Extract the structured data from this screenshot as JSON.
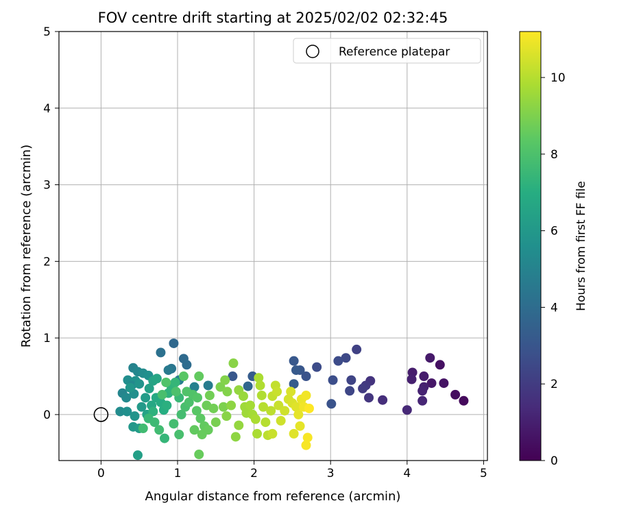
{
  "chart_data": {
    "type": "scatter",
    "title": "FOV centre drift starting at 2025/02/02 02:32:45",
    "xlabel": "Angular distance from reference (arcmin)",
    "ylabel": "Rotation from reference (arcmin)",
    "xlim": [
      -0.55,
      5.05
    ],
    "ylim": [
      -0.6,
      5.0
    ],
    "xticks": [
      "0",
      "1",
      "2",
      "3",
      "4",
      "5"
    ],
    "yticks": [
      "0",
      "1",
      "2",
      "3",
      "4",
      "5"
    ],
    "grid": true,
    "legend": {
      "placement": "top-right",
      "entries": [
        "Reference platepar"
      ]
    },
    "reference_point": {
      "x": 0,
      "y": 0
    },
    "colorbar": {
      "label": "Hours from first FF file",
      "range": [
        0,
        11.2
      ],
      "colormap": "viridis",
      "ticks": [
        "0",
        "2",
        "4",
        "6",
        "8",
        "10"
      ]
    },
    "series": [
      {
        "color_by": "hours",
        "points": [
          [
            4.74,
            0.18,
            0.3
          ],
          [
            4.63,
            0.26,
            0.4
          ],
          [
            4.48,
            0.41,
            0.6
          ],
          [
            4.43,
            0.65,
            0.5
          ],
          [
            4.3,
            0.74,
            0.8
          ],
          [
            4.32,
            0.41,
            0.7
          ],
          [
            4.22,
            0.5,
            0.9
          ],
          [
            4.22,
            0.36,
            1.0
          ],
          [
            4.2,
            0.31,
            1.1
          ],
          [
            4.2,
            0.18,
            1.2
          ],
          [
            4.07,
            0.55,
            0.9
          ],
          [
            4.06,
            0.46,
            1.0
          ],
          [
            4.0,
            0.06,
            1.3
          ],
          [
            3.68,
            0.19,
            1.5
          ],
          [
            3.52,
            0.44,
            1.7
          ],
          [
            3.5,
            0.22,
            1.8
          ],
          [
            3.46,
            0.38,
            1.9
          ],
          [
            3.42,
            0.34,
            2.0
          ],
          [
            3.34,
            0.85,
            2.2
          ],
          [
            3.27,
            0.45,
            2.3
          ],
          [
            3.25,
            0.31,
            2.4
          ],
          [
            3.2,
            0.74,
            2.5
          ],
          [
            3.1,
            0.7,
            2.6
          ],
          [
            3.03,
            0.45,
            2.7
          ],
          [
            3.01,
            0.14,
            2.9
          ],
          [
            2.82,
            0.62,
            2.6
          ],
          [
            2.68,
            0.5,
            2.9
          ],
          [
            2.6,
            0.58,
            3.0
          ],
          [
            2.55,
            0.58,
            3.2
          ],
          [
            2.52,
            0.7,
            3.1
          ],
          [
            2.52,
            0.4,
            3.3
          ],
          [
            1.98,
            0.5,
            3.3
          ],
          [
            1.72,
            0.5,
            3.1
          ],
          [
            1.92,
            0.37,
            3.7
          ],
          [
            0.95,
            0.93,
            3.8
          ],
          [
            1.08,
            0.73,
            3.9
          ],
          [
            1.12,
            0.65,
            4.0
          ],
          [
            0.78,
            0.81,
            4.2
          ],
          [
            0.92,
            0.6,
            4.4
          ],
          [
            0.88,
            0.58,
            4.6
          ],
          [
            1.4,
            0.38,
            4.7
          ],
          [
            1.22,
            0.36,
            4.9
          ],
          [
            1.02,
            0.45,
            4.8
          ],
          [
            0.42,
            0.61,
            5.0
          ],
          [
            0.48,
            0.56,
            5.2
          ],
          [
            0.55,
            0.54,
            5.4
          ],
          [
            0.62,
            0.51,
            5.6
          ],
          [
            0.35,
            0.45,
            5.5
          ],
          [
            0.45,
            0.44,
            5.7
          ],
          [
            0.4,
            0.38,
            5.3
          ],
          [
            0.5,
            0.4,
            5.8
          ],
          [
            0.28,
            0.28,
            5.1
          ],
          [
            0.33,
            0.22,
            5.3
          ],
          [
            0.43,
            0.27,
            5.6
          ],
          [
            0.38,
            0.35,
            5.9
          ],
          [
            0.25,
            0.04,
            5.4
          ],
          [
            0.34,
            0.04,
            5.6
          ],
          [
            0.44,
            -0.02,
            5.8
          ],
          [
            0.42,
            -0.16,
            6.0
          ],
          [
            0.5,
            -0.18,
            6.2
          ],
          [
            0.48,
            -0.53,
            6.3
          ],
          [
            0.53,
            0.1,
            6.1
          ],
          [
            0.58,
            0.22,
            6.2
          ],
          [
            0.63,
            0.34,
            6.4
          ],
          [
            0.68,
            0.44,
            6.5
          ],
          [
            0.73,
            0.47,
            6.6
          ],
          [
            0.6,
            0.0,
            6.5
          ],
          [
            0.66,
            0.12,
            6.7
          ],
          [
            0.72,
            0.22,
            6.8
          ],
          [
            0.78,
            0.16,
            6.9
          ],
          [
            0.82,
            0.06,
            7.0
          ],
          [
            0.86,
            0.12,
            7.1
          ],
          [
            0.88,
            0.28,
            7.2
          ],
          [
            0.92,
            0.34,
            7.3
          ],
          [
            0.97,
            0.42,
            7.4
          ],
          [
            1.02,
            0.22,
            7.5
          ],
          [
            0.83,
            -0.31,
            7.4
          ],
          [
            0.68,
            0.04,
            7.2
          ],
          [
            0.62,
            -0.05,
            7.5
          ],
          [
            0.7,
            -0.1,
            7.6
          ],
          [
            0.76,
            -0.2,
            7.7
          ],
          [
            0.55,
            -0.18,
            7.7
          ],
          [
            0.95,
            -0.12,
            7.8
          ],
          [
            1.02,
            -0.26,
            7.9
          ],
          [
            1.05,
            0.0,
            7.8
          ],
          [
            1.1,
            0.1,
            7.9
          ],
          [
            1.15,
            0.16,
            8.0
          ],
          [
            1.2,
            0.26,
            8.1
          ],
          [
            1.08,
            0.5,
            8.3
          ],
          [
            1.26,
            0.22,
            8.2
          ],
          [
            0.8,
            0.26,
            7.9
          ],
          [
            0.85,
            0.42,
            8.1
          ],
          [
            0.98,
            0.3,
            8.0
          ],
          [
            1.12,
            0.3,
            8.1
          ],
          [
            1.25,
            0.05,
            8.3
          ],
          [
            1.3,
            -0.05,
            8.4
          ],
          [
            1.35,
            -0.15,
            8.5
          ],
          [
            1.32,
            -0.26,
            8.6
          ],
          [
            1.22,
            -0.2,
            8.5
          ],
          [
            1.4,
            -0.2,
            8.6
          ],
          [
            1.28,
            -0.52,
            8.6
          ],
          [
            1.28,
            0.5,
            8.5
          ],
          [
            1.38,
            0.12,
            8.7
          ],
          [
            1.42,
            0.25,
            8.8
          ],
          [
            1.47,
            0.08,
            8.8
          ],
          [
            1.5,
            -0.1,
            8.9
          ],
          [
            1.56,
            0.36,
            9.0
          ],
          [
            1.62,
            0.45,
            9.1
          ],
          [
            1.65,
            0.3,
            9.1
          ],
          [
            1.6,
            0.1,
            9.0
          ],
          [
            1.64,
            -0.02,
            9.2
          ],
          [
            1.7,
            0.12,
            9.3
          ],
          [
            1.73,
            0.67,
            9.2
          ],
          [
            1.76,
            -0.29,
            9.3
          ],
          [
            1.8,
            0.32,
            9.4
          ],
          [
            1.8,
            -0.14,
            9.4
          ],
          [
            1.86,
            0.24,
            9.5
          ],
          [
            1.88,
            0.1,
            9.6
          ],
          [
            1.9,
            0.02,
            9.6
          ],
          [
            1.95,
            0.12,
            9.7
          ],
          [
            1.98,
            0.0,
            9.7
          ],
          [
            2.02,
            -0.06,
            9.8
          ],
          [
            2.04,
            -0.25,
            9.8
          ],
          [
            2.06,
            0.48,
            9.8
          ],
          [
            2.08,
            0.38,
            9.9
          ],
          [
            2.1,
            0.25,
            9.9
          ],
          [
            2.12,
            0.1,
            10.0
          ],
          [
            2.15,
            -0.1,
            10.0
          ],
          [
            2.18,
            -0.27,
            10.1
          ],
          [
            2.22,
            0.05,
            10.1
          ],
          [
            2.24,
            0.24,
            10.2
          ],
          [
            2.28,
            0.38,
            10.2
          ],
          [
            2.3,
            0.3,
            10.3
          ],
          [
            2.32,
            0.12,
            10.3
          ],
          [
            2.35,
            -0.08,
            10.4
          ],
          [
            2.24,
            -0.25,
            10.3
          ],
          [
            2.4,
            0.05,
            10.4
          ],
          [
            2.45,
            0.2,
            10.5
          ],
          [
            2.48,
            0.3,
            10.6
          ],
          [
            2.5,
            0.15,
            10.6
          ],
          [
            2.52,
            -0.25,
            10.7
          ],
          [
            2.55,
            0.1,
            10.7
          ],
          [
            2.58,
            0.0,
            10.8
          ],
          [
            2.6,
            -0.15,
            10.8
          ],
          [
            2.62,
            0.2,
            10.9
          ],
          [
            2.65,
            0.1,
            11.0
          ],
          [
            2.68,
            0.25,
            11.0
          ],
          [
            2.7,
            -0.3,
            11.1
          ],
          [
            2.68,
            -0.4,
            11.1
          ],
          [
            2.72,
            0.08,
            11.2
          ]
        ]
      }
    ]
  }
}
